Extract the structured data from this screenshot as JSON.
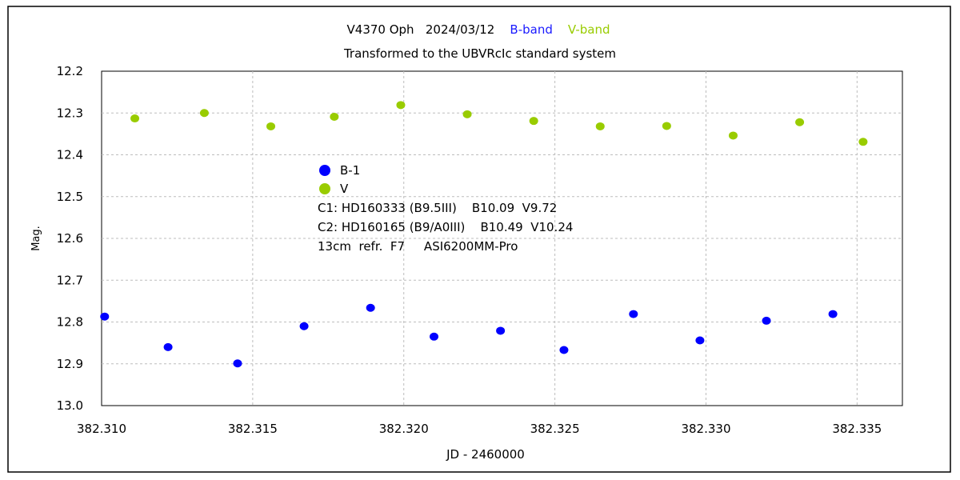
{
  "chart_data": {
    "type": "scatter",
    "title_parts": [
      {
        "text": "V4370 Oph   2024/03/12",
        "color": "#000000"
      },
      {
        "text": "B-band",
        "color": "#1a1aff"
      },
      {
        "text": "V-band",
        "color": "#99cc00"
      }
    ],
    "subtitle": "Transformed to the UBVRcIc standard system",
    "xlabel": "JD - 2460000",
    "ylabel": "Mag.",
    "xlim": [
      382.31,
      382.3365
    ],
    "ylim": [
      12.2,
      13.0
    ],
    "y_inverted": true,
    "grid": true,
    "xticks": [
      {
        "value": 382.31,
        "label": "382.310"
      },
      {
        "value": 382.315,
        "label": "382.315"
      },
      {
        "value": 382.32,
        "label": "382.320"
      },
      {
        "value": 382.325,
        "label": "382.325"
      },
      {
        "value": 382.33,
        "label": "382.330"
      },
      {
        "value": 382.335,
        "label": "382.335"
      }
    ],
    "yticks": [
      {
        "value": 12.2,
        "label": "12.2"
      },
      {
        "value": 12.3,
        "label": "12.3"
      },
      {
        "value": 12.4,
        "label": "12.4"
      },
      {
        "value": 12.5,
        "label": "12.5"
      },
      {
        "value": 12.6,
        "label": "12.6"
      },
      {
        "value": 12.7,
        "label": "12.7"
      },
      {
        "value": 12.8,
        "label": "12.8"
      },
      {
        "value": 12.9,
        "label": "12.9"
      },
      {
        "value": 13.0,
        "label": "13.0"
      }
    ],
    "series": [
      {
        "name": "B-1",
        "color": "#0000ff",
        "x": [
          382.3101,
          382.3122,
          382.3145,
          382.3167,
          382.3189,
          382.321,
          382.3232,
          382.3253,
          382.3276,
          382.3298,
          382.332,
          382.3342
        ],
        "y": [
          12.787,
          12.86,
          12.899,
          12.81,
          12.766,
          12.835,
          12.821,
          12.867,
          12.781,
          12.844,
          12.797,
          12.781
        ]
      },
      {
        "name": "V",
        "color": "#99cc00",
        "x": [
          382.3111,
          382.3134,
          382.3156,
          382.3177,
          382.3199,
          382.3221,
          382.3243,
          382.3265,
          382.3287,
          382.3309,
          382.3331,
          382.3352
        ],
        "y": [
          12.313,
          12.3,
          12.332,
          12.309,
          12.281,
          12.303,
          12.319,
          12.332,
          12.331,
          12.354,
          12.322,
          12.369
        ]
      }
    ],
    "legend_position": "top-left inside plot",
    "annotations": [
      "C1: HD160333 (B9.5III)    B10.09  V9.72",
      "C2: HD160165 (B9/A0III)    B10.49  V10.24",
      "13cm  refr.  F7     ASI6200MM-Pro"
    ]
  }
}
